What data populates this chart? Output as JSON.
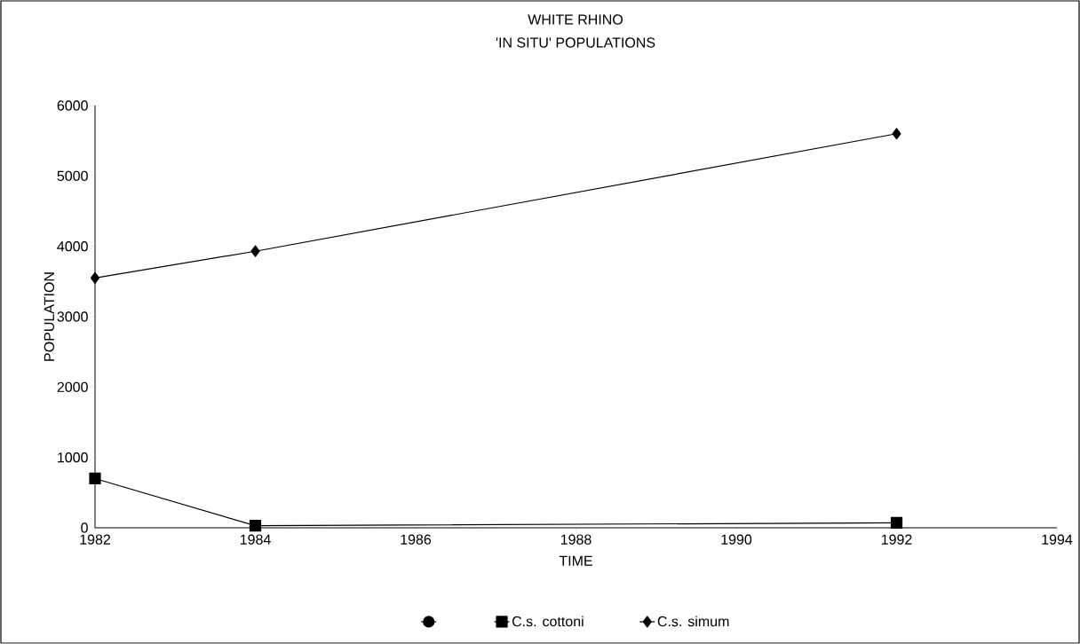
{
  "chart_data": {
    "type": "line",
    "title": "WHITE RHINO",
    "subtitle": "'IN SITU' POPULATIONS",
    "xlabel": "TIME",
    "ylabel": "POPULATION",
    "x": [
      1982,
      1984,
      1992
    ],
    "series": [
      {
        "color": "#000000",
        "marker": "circle",
        "values": [
          null,
          null,
          null
        ]
      },
      {
        "name": "C.s. cottoni",
        "color": "#000000",
        "marker": "square",
        "values": [
          700,
          30,
          70
        ]
      },
      {
        "name": "C.s. simum",
        "color": "#000000",
        "marker": "diamond",
        "values": [
          3550,
          3930,
          5600
        ]
      }
    ],
    "xlim": [
      1982,
      1994
    ],
    "xticks": [
      1982,
      1984,
      1986,
      1988,
      1990,
      1992,
      1994
    ],
    "ylim": [
      0,
      6000
    ],
    "yticks": [
      0,
      1000,
      2000,
      3000,
      4000,
      5000,
      6000
    ],
    "grid": false,
    "legend": "bottom",
    "line_style": "solid"
  }
}
